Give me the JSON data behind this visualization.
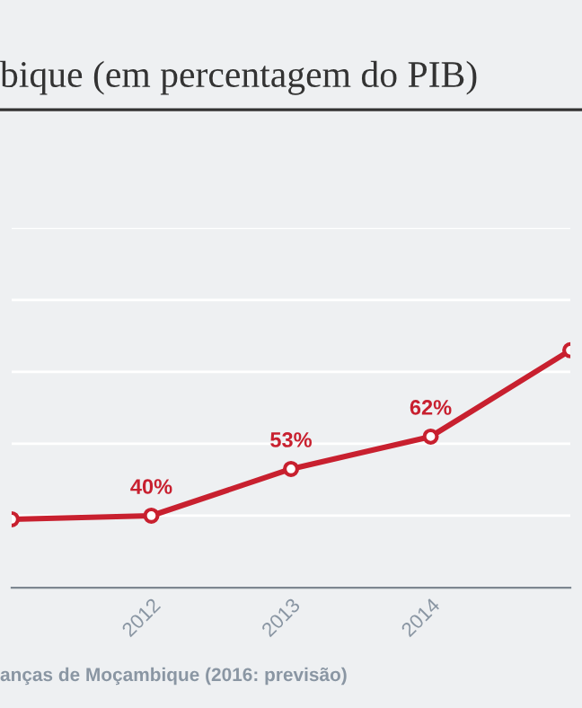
{
  "chart_data": {
    "type": "line",
    "title": "bique (em percentagem do PIB)",
    "categories": [
      null,
      "2012",
      "2013",
      "2014",
      null
    ],
    "series": [
      {
        "color": "#c8202f",
        "values": [
          39,
          40,
          53,
          62,
          86
        ],
        "value_labels": [
          null,
          "40%",
          "53%",
          "62%",
          null
        ]
      }
    ],
    "ylim": [
      20,
      120
    ],
    "yticks": [
      {
        "value": 20,
        "label": null
      },
      {
        "value": 40,
        "label": null
      },
      {
        "value": 60,
        "label": null
      },
      {
        "value": 80,
        "label": null
      },
      {
        "value": 100,
        "label": null
      },
      {
        "value": 120,
        "label": null
      }
    ],
    "tick_labels": "x",
    "grid": "y",
    "marker": "circle",
    "line_style": "solid",
    "legend": false,
    "annotations": [
      "anças de Moçambique (2016: previsão)"
    ]
  }
}
